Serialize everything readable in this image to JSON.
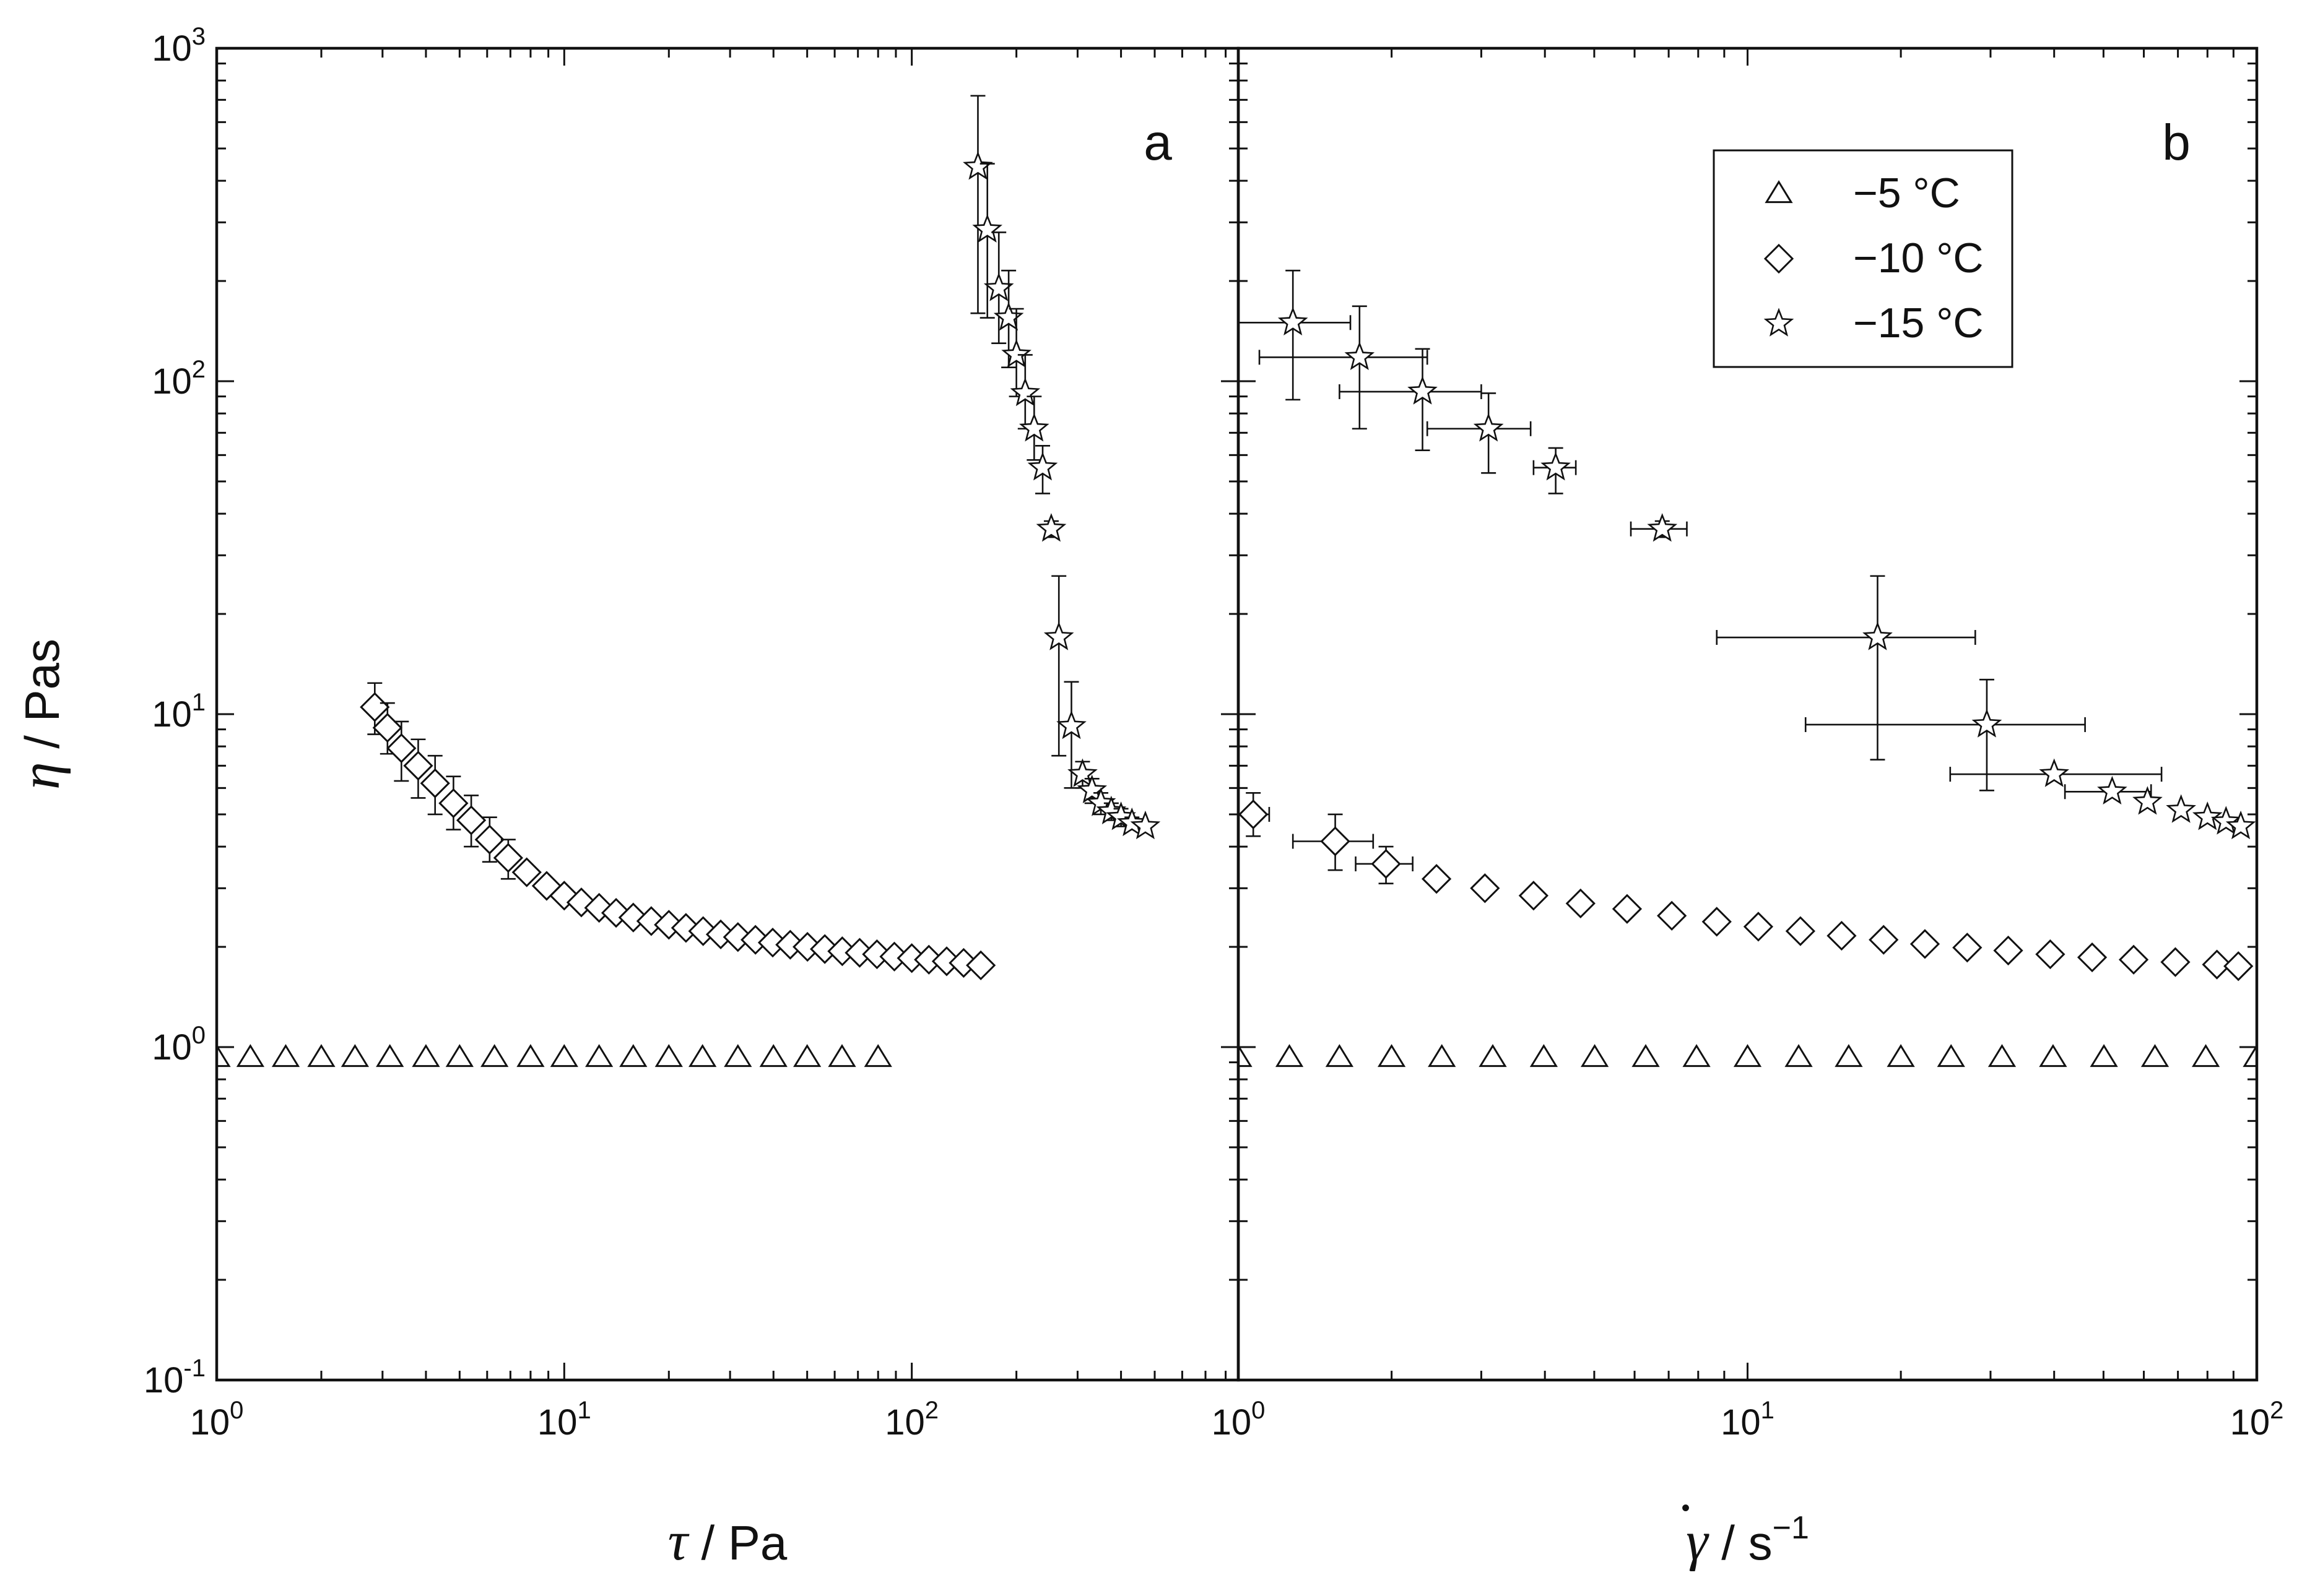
{
  "chart_data": [
    {
      "type": "scatter",
      "panel_label": "a",
      "title": "",
      "xscale": "log",
      "yscale": "log",
      "xlim": [
        1,
        870
      ],
      "ylim": [
        0.1,
        1000
      ],
      "xlabel_symbol": "τ",
      "xlabel_unit": " / Pa",
      "ylabel_symbol": "η",
      "ylabel_unit": " / Pas",
      "x_ticks": [
        {
          "value": 1,
          "base": "10",
          "exp": "0"
        },
        {
          "value": 10,
          "base": "10",
          "exp": "1"
        },
        {
          "value": 100,
          "base": "10",
          "exp": "2"
        }
      ],
      "y_ticks": [
        {
          "value": 0.1,
          "base": "10",
          "exp": "-1"
        },
        {
          "value": 1,
          "base": "10",
          "exp": "0"
        },
        {
          "value": 10,
          "base": "10",
          "exp": "1"
        },
        {
          "value": 100,
          "base": "10",
          "exp": "2"
        },
        {
          "value": 1000,
          "base": "10",
          "exp": "3"
        }
      ],
      "series": [
        {
          "name": "−5 °C",
          "marker": "triangle",
          "points": [
            {
              "x": 1.0,
              "y": 0.93
            },
            {
              "x": 1.25,
              "y": 0.93
            },
            {
              "x": 1.58,
              "y": 0.93
            },
            {
              "x": 2.0,
              "y": 0.93
            },
            {
              "x": 2.5,
              "y": 0.93
            },
            {
              "x": 3.15,
              "y": 0.93
            },
            {
              "x": 4.0,
              "y": 0.93
            },
            {
              "x": 5.0,
              "y": 0.93
            },
            {
              "x": 6.3,
              "y": 0.93
            },
            {
              "x": 8.0,
              "y": 0.93
            },
            {
              "x": 10.0,
              "y": 0.93
            },
            {
              "x": 12.6,
              "y": 0.93
            },
            {
              "x": 15.8,
              "y": 0.93
            },
            {
              "x": 20.0,
              "y": 0.93
            },
            {
              "x": 25.0,
              "y": 0.93
            },
            {
              "x": 31.6,
              "y": 0.93
            },
            {
              "x": 40.0,
              "y": 0.93
            },
            {
              "x": 50.0,
              "y": 0.93
            },
            {
              "x": 63.0,
              "y": 0.93
            },
            {
              "x": 80.0,
              "y": 0.93
            }
          ]
        },
        {
          "name": "−10 °C",
          "marker": "diamond",
          "points": [
            {
              "x": 2.85,
              "y": 10.5,
              "ylo": 8.7,
              "yhi": 12.4
            },
            {
              "x": 3.1,
              "y": 9.1,
              "ylo": 7.6,
              "yhi": 10.8
            },
            {
              "x": 3.4,
              "y": 7.9,
              "ylo": 6.3,
              "yhi": 9.5
            },
            {
              "x": 3.8,
              "y": 7.0,
              "ylo": 5.6,
              "yhi": 8.4
            },
            {
              "x": 4.25,
              "y": 6.2,
              "ylo": 5.0,
              "yhi": 7.5
            },
            {
              "x": 4.8,
              "y": 5.4,
              "ylo": 4.5,
              "yhi": 6.5
            },
            {
              "x": 5.4,
              "y": 4.8,
              "ylo": 4.0,
              "yhi": 5.7
            },
            {
              "x": 6.1,
              "y": 4.2,
              "ylo": 3.6,
              "yhi": 4.9
            },
            {
              "x": 6.9,
              "y": 3.7,
              "ylo": 3.2,
              "yhi": 4.2
            },
            {
              "x": 7.8,
              "y": 3.35
            },
            {
              "x": 8.9,
              "y": 3.05
            },
            {
              "x": 10.0,
              "y": 2.85
            },
            {
              "x": 11.2,
              "y": 2.72
            },
            {
              "x": 12.6,
              "y": 2.62
            },
            {
              "x": 14.1,
              "y": 2.53
            },
            {
              "x": 15.8,
              "y": 2.45
            },
            {
              "x": 17.8,
              "y": 2.39
            },
            {
              "x": 20.0,
              "y": 2.33
            },
            {
              "x": 22.4,
              "y": 2.28
            },
            {
              "x": 25.1,
              "y": 2.23
            },
            {
              "x": 28.2,
              "y": 2.18
            },
            {
              "x": 31.6,
              "y": 2.14
            },
            {
              "x": 35.5,
              "y": 2.1
            },
            {
              "x": 39.8,
              "y": 2.06
            },
            {
              "x": 44.7,
              "y": 2.03
            },
            {
              "x": 50.1,
              "y": 2.0
            },
            {
              "x": 56.2,
              "y": 1.97
            },
            {
              "x": 63.1,
              "y": 1.94
            },
            {
              "x": 70.8,
              "y": 1.92
            },
            {
              "x": 79.4,
              "y": 1.9
            },
            {
              "x": 89.1,
              "y": 1.87
            },
            {
              "x": 100,
              "y": 1.85
            },
            {
              "x": 112,
              "y": 1.83
            },
            {
              "x": 126,
              "y": 1.81
            },
            {
              "x": 141,
              "y": 1.79
            },
            {
              "x": 158,
              "y": 1.76
            }
          ]
        },
        {
          "name": "−15 °C",
          "marker": "star",
          "points": [
            {
              "x": 155,
              "y": 440,
              "ylo": 160,
              "yhi": 720
            },
            {
              "x": 165,
              "y": 285,
              "ylo": 155,
              "yhi": 450
            },
            {
              "x": 178,
              "y": 190,
              "ylo": 130,
              "yhi": 280
            },
            {
              "x": 190,
              "y": 155,
              "ylo": 110,
              "yhi": 215
            },
            {
              "x": 200,
              "y": 120,
              "ylo": 90,
              "yhi": 165
            },
            {
              "x": 212,
              "y": 92,
              "ylo": 72,
              "yhi": 120
            },
            {
              "x": 225,
              "y": 72,
              "ylo": 58,
              "yhi": 90
            },
            {
              "x": 238,
              "y": 55,
              "ylo": 46,
              "yhi": 64
            },
            {
              "x": 252,
              "y": 36,
              "ylo": 34,
              "yhi": 38
            },
            {
              "x": 265,
              "y": 17,
              "ylo": 7.5,
              "yhi": 26
            },
            {
              "x": 288,
              "y": 9.2,
              "ylo": 6.0,
              "yhi": 12.5
            },
            {
              "x": 310,
              "y": 6.6,
              "ylo": 6.0,
              "yhi": 7.2
            },
            {
              "x": 330,
              "y": 5.9,
              "ylo": 5.4,
              "yhi": 6.4
            },
            {
              "x": 350,
              "y": 5.4,
              "ylo": 5.0,
              "yhi": 5.8
            },
            {
              "x": 375,
              "y": 5.1,
              "ylo": 4.8,
              "yhi": 5.4
            },
            {
              "x": 400,
              "y": 4.9,
              "ylo": 4.6,
              "yhi": 5.2
            },
            {
              "x": 430,
              "y": 4.7,
              "ylo": 4.5,
              "yhi": 4.9
            },
            {
              "x": 470,
              "y": 4.6
            }
          ]
        }
      ]
    },
    {
      "type": "scatter",
      "panel_label": "b",
      "title": "",
      "xscale": "log",
      "yscale": "log",
      "xlim": [
        1,
        100
      ],
      "ylim": [
        0.1,
        1000
      ],
      "xlabel_symbol": "γ",
      "xlabel_dot": "•",
      "xlabel_unit": " / s",
      "xlabel_unit_exp": "−1",
      "x_ticks": [
        {
          "value": 1,
          "base": "10",
          "exp": "0"
        },
        {
          "value": 10,
          "base": "10",
          "exp": "1"
        },
        {
          "value": 100,
          "base": "10",
          "exp": "2"
        }
      ],
      "legend_position": "top-right",
      "series": [
        {
          "name": "−5 °C",
          "marker": "triangle",
          "points": [
            {
              "x": 1.0,
              "y": 0.93
            },
            {
              "x": 1.26,
              "y": 0.93
            },
            {
              "x": 1.58,
              "y": 0.93
            },
            {
              "x": 2.0,
              "y": 0.93
            },
            {
              "x": 2.51,
              "y": 0.93
            },
            {
              "x": 3.16,
              "y": 0.93
            },
            {
              "x": 3.98,
              "y": 0.93
            },
            {
              "x": 5.01,
              "y": 0.93
            },
            {
              "x": 6.31,
              "y": 0.93
            },
            {
              "x": 7.94,
              "y": 0.93
            },
            {
              "x": 10.0,
              "y": 0.93
            },
            {
              "x": 12.6,
              "y": 0.93
            },
            {
              "x": 15.8,
              "y": 0.93
            },
            {
              "x": 20.0,
              "y": 0.93
            },
            {
              "x": 25.1,
              "y": 0.93
            },
            {
              "x": 31.6,
              "y": 0.93
            },
            {
              "x": 39.8,
              "y": 0.93
            },
            {
              "x": 50.1,
              "y": 0.93
            },
            {
              "x": 63.1,
              "y": 0.93
            },
            {
              "x": 79.4,
              "y": 0.93
            },
            {
              "x": 100,
              "y": 0.93
            }
          ]
        },
        {
          "name": "−10 °C",
          "marker": "diamond",
          "points": [
            {
              "x": 1.07,
              "y": 5.0,
              "ylo": 4.3,
              "yhi": 5.8,
              "xlo": 1.0,
              "xhi": 1.15
            },
            {
              "x": 1.55,
              "y": 4.15,
              "ylo": 3.4,
              "yhi": 5.0,
              "xlo": 1.28,
              "xhi": 1.84
            },
            {
              "x": 1.95,
              "y": 3.55,
              "ylo": 3.1,
              "yhi": 4.0,
              "xlo": 1.7,
              "xhi": 2.2
            },
            {
              "x": 2.45,
              "y": 3.2
            },
            {
              "x": 3.05,
              "y": 3.0
            },
            {
              "x": 3.8,
              "y": 2.85
            },
            {
              "x": 4.7,
              "y": 2.7
            },
            {
              "x": 5.8,
              "y": 2.6
            },
            {
              "x": 7.1,
              "y": 2.48
            },
            {
              "x": 8.7,
              "y": 2.38
            },
            {
              "x": 10.5,
              "y": 2.3
            },
            {
              "x": 12.7,
              "y": 2.23
            },
            {
              "x": 15.3,
              "y": 2.16
            },
            {
              "x": 18.5,
              "y": 2.1
            },
            {
              "x": 22.3,
              "y": 2.04
            },
            {
              "x": 27,
              "y": 1.99
            },
            {
              "x": 32.5,
              "y": 1.95
            },
            {
              "x": 39.3,
              "y": 1.9
            },
            {
              "x": 47.5,
              "y": 1.86
            },
            {
              "x": 57.3,
              "y": 1.83
            },
            {
              "x": 69.2,
              "y": 1.8
            },
            {
              "x": 83.5,
              "y": 1.77
            },
            {
              "x": 92,
              "y": 1.75
            }
          ]
        },
        {
          "name": "−15 °C",
          "marker": "star",
          "points": [
            {
              "x": 1.28,
              "y": 150,
              "ylo": 88,
              "yhi": 215,
              "xlo": 1.0,
              "xhi": 1.66
            },
            {
              "x": 1.73,
              "y": 118,
              "ylo": 72,
              "yhi": 168,
              "xlo": 1.1,
              "xhi": 2.35
            },
            {
              "x": 2.3,
              "y": 93,
              "ylo": 62,
              "yhi": 125,
              "xlo": 1.58,
              "xhi": 3.0
            },
            {
              "x": 3.1,
              "y": 72,
              "ylo": 53,
              "yhi": 92,
              "xlo": 2.35,
              "xhi": 3.75
            },
            {
              "x": 4.2,
              "y": 55,
              "ylo": 46,
              "yhi": 63,
              "xlo": 3.8,
              "xhi": 4.6
            },
            {
              "x": 6.8,
              "y": 36,
              "ylo": 34,
              "yhi": 38,
              "xlo": 5.9,
              "xhi": 7.6
            },
            {
              "x": 18,
              "y": 17,
              "ylo": 7.3,
              "yhi": 26,
              "xlo": 8.7,
              "xhi": 28
            },
            {
              "x": 29.5,
              "y": 9.3,
              "ylo": 5.9,
              "yhi": 12.7,
              "xlo": 13,
              "xhi": 46
            },
            {
              "x": 40,
              "y": 6.6,
              "xlo": 25,
              "xhi": 65
            },
            {
              "x": 52,
              "y": 5.85,
              "xlo": 42,
              "xhi": 62
            },
            {
              "x": 61,
              "y": 5.45
            },
            {
              "x": 71,
              "y": 5.15
            },
            {
              "x": 80,
              "y": 4.9
            },
            {
              "x": 87,
              "y": 4.75
            },
            {
              "x": 93,
              "y": 4.6
            }
          ]
        }
      ]
    }
  ]
}
